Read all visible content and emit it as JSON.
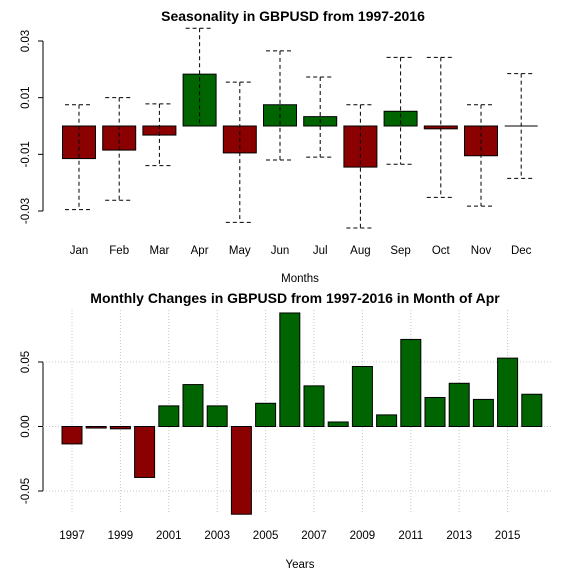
{
  "chart_data": [
    {
      "type": "bar",
      "title": "Seasonality in GBPUSD from 1997-2016",
      "xlabel": "Months",
      "ylabel": "",
      "ylim": [
        -0.037,
        0.036
      ],
      "yticks": [
        -0.03,
        -0.01,
        0.01,
        0.03
      ],
      "ytick_labels": [
        "-0.03",
        "-0.01",
        "0.01",
        "0.03"
      ],
      "grid": false,
      "categories": [
        "Jan",
        "Feb",
        "Mar",
        "Apr",
        "May",
        "Jun",
        "Jul",
        "Aug",
        "Sep",
        "Oct",
        "Nov",
        "Dec"
      ],
      "values": [
        -0.0115,
        -0.0085,
        -0.0032,
        0.0183,
        -0.0095,
        0.0075,
        0.0033,
        -0.0145,
        0.0052,
        -0.001,
        -0.0105,
        0.0
      ],
      "err_high": [
        0.0075,
        0.01,
        0.0078,
        0.0345,
        0.0155,
        0.0265,
        0.0173,
        0.0075,
        0.0242,
        0.0242,
        0.0075,
        0.0185
      ],
      "err_low": [
        -0.0295,
        -0.0262,
        -0.014,
        0.0,
        -0.034,
        -0.012,
        -0.011,
        -0.036,
        -0.0135,
        -0.0252,
        -0.0283,
        -0.0185
      ],
      "colors": {
        "positive": "#006400",
        "negative": "#8b0000"
      }
    },
    {
      "type": "bar",
      "title": "Monthly Changes in GBPUSD from 1997-2016 in Month of Apr",
      "xlabel": "Years",
      "ylabel": "",
      "ylim": [
        -0.07,
        0.09
      ],
      "yticks": [
        -0.05,
        0.0,
        0.05
      ],
      "ytick_labels": [
        "-0.05",
        "0.00",
        "0.05"
      ],
      "grid": true,
      "categories": [
        "1997",
        "1998",
        "1999",
        "2000",
        "2001",
        "2002",
        "2003",
        "2004",
        "2005",
        "2006",
        "2007",
        "2008",
        "2009",
        "2010",
        "2011",
        "2012",
        "2013",
        "2014",
        "2015",
        "2016"
      ],
      "xtick_labels": [
        "1997",
        "1999",
        "2001",
        "2003",
        "2005",
        "2007",
        "2009",
        "2011",
        "2013",
        "2015"
      ],
      "values": [
        -0.0135,
        -0.0012,
        -0.0018,
        -0.0395,
        0.016,
        0.0325,
        0.016,
        -0.068,
        0.018,
        0.088,
        0.0315,
        0.0035,
        0.0465,
        0.009,
        0.0675,
        0.0225,
        0.0335,
        0.021,
        0.053,
        0.025
      ],
      "colors": {
        "positive": "#006400",
        "negative": "#8b0000"
      }
    }
  ]
}
